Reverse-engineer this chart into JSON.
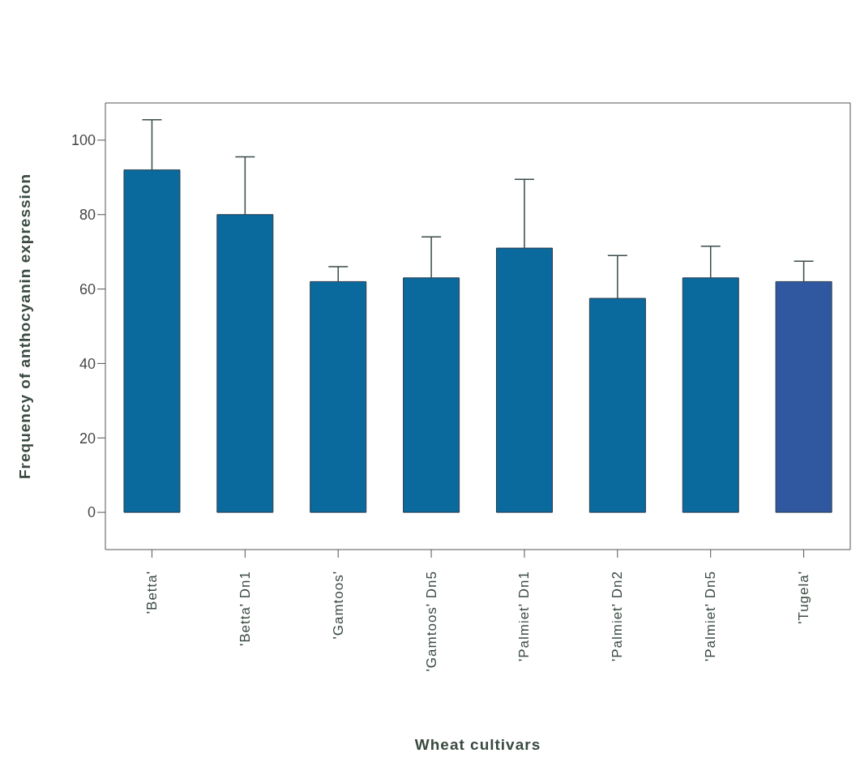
{
  "chart_data": {
    "type": "bar",
    "xlabel": "Wheat cultivars",
    "ylabel": "Frequency of anthocyanin expression",
    "categories": [
      "'Betta'",
      "'Betta' Dn1",
      "'Gamtoos'",
      "'Gamtoos' Dn5",
      "'Palmiet' Dn1",
      "'Palmiet' Dn2",
      "'Palmiet' Dn5",
      "'Tugela'"
    ],
    "values": [
      92,
      80,
      62,
      63,
      71,
      57.5,
      63,
      62
    ],
    "errors": [
      [
        92,
        105.5
      ],
      [
        80,
        95.5
      ],
      [
        62,
        66
      ],
      [
        63,
        74
      ],
      [
        71,
        89.5
      ],
      [
        57.5,
        69
      ],
      [
        63,
        71.5
      ],
      [
        62,
        67.5
      ]
    ],
    "colors": [
      "#0a6a9e",
      "#0a6a9e",
      "#0a6a9e",
      "#0a6a9e",
      "#0a6a9e",
      "#0a6a9e",
      "#0a6a9e",
      "#2f58a0"
    ],
    "ylim": [
      -10,
      110
    ],
    "yticks": [
      0,
      20,
      40,
      60,
      80,
      100
    ],
    "grid": false,
    "legend": false
  }
}
